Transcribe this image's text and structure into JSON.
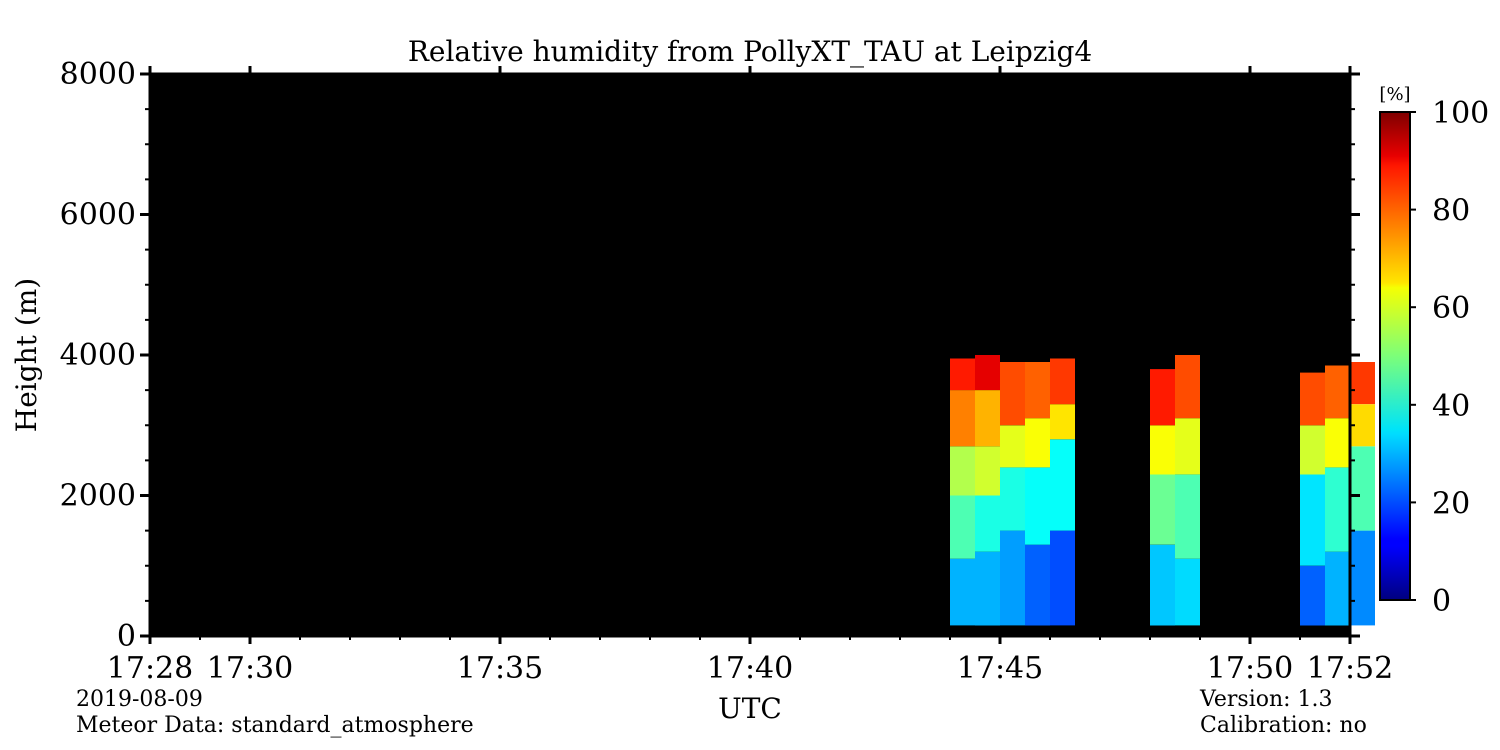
{
  "chart_data": {
    "type": "heatmap",
    "title": "Relative humidity from PollyXT_TAU at Leipzig4",
    "xlabel": "UTC",
    "ylabel": "Height (m)",
    "x_range": [
      "17:28",
      "17:52"
    ],
    "x_ticks": [
      "17:28",
      "17:30",
      "17:35",
      "17:40",
      "17:45",
      "17:50",
      "17:52"
    ],
    "ylim": [
      0,
      8000
    ],
    "y_ticks": [
      0,
      2000,
      4000,
      6000,
      8000
    ],
    "colorbar": {
      "label": "[%]",
      "range": [
        0,
        100
      ],
      "ticks": [
        0,
        20,
        40,
        60,
        80,
        100
      ],
      "colormap": "jet"
    },
    "background_color": "#000000",
    "profiles": [
      {
        "time": "17:44",
        "segments": [
          {
            "from": 150,
            "to": 1100,
            "rh": 30
          },
          {
            "from": 1100,
            "to": 2000,
            "rh": 45
          },
          {
            "from": 2000,
            "to": 2700,
            "rh": 55
          },
          {
            "from": 2700,
            "to": 3500,
            "rh": 75
          },
          {
            "from": 3500,
            "to": 3950,
            "rh": 85
          }
        ]
      },
      {
        "time": "17:44.5",
        "segments": [
          {
            "from": 150,
            "to": 1200,
            "rh": 30
          },
          {
            "from": 1200,
            "to": 2000,
            "rh": 40
          },
          {
            "from": 2000,
            "to": 2700,
            "rh": 58
          },
          {
            "from": 2700,
            "to": 3500,
            "rh": 70
          },
          {
            "from": 3500,
            "to": 4000,
            "rh": 90
          }
        ]
      },
      {
        "time": "17:45",
        "segments": [
          {
            "from": 150,
            "to": 1500,
            "rh": 28
          },
          {
            "from": 1500,
            "to": 2400,
            "rh": 40
          },
          {
            "from": 2400,
            "to": 3000,
            "rh": 60
          },
          {
            "from": 3000,
            "to": 3900,
            "rh": 80
          }
        ]
      },
      {
        "time": "17:45.5",
        "segments": [
          {
            "from": 150,
            "to": 1300,
            "rh": 22
          },
          {
            "from": 1300,
            "to": 2400,
            "rh": 38
          },
          {
            "from": 2400,
            "to": 3100,
            "rh": 62
          },
          {
            "from": 3100,
            "to": 3900,
            "rh": 78
          }
        ]
      },
      {
        "time": "17:46",
        "segments": [
          {
            "from": 150,
            "to": 1500,
            "rh": 20
          },
          {
            "from": 1500,
            "to": 2800,
            "rh": 38
          },
          {
            "from": 2800,
            "to": 3300,
            "rh": 65
          },
          {
            "from": 3300,
            "to": 3950,
            "rh": 82
          }
        ]
      },
      {
        "time": "17:48",
        "segments": [
          {
            "from": 150,
            "to": 1300,
            "rh": 32
          },
          {
            "from": 1300,
            "to": 2300,
            "rh": 48
          },
          {
            "from": 2300,
            "to": 3000,
            "rh": 62
          },
          {
            "from": 3000,
            "to": 3800,
            "rh": 85
          }
        ]
      },
      {
        "time": "17:48.5",
        "segments": [
          {
            "from": 150,
            "to": 1100,
            "rh": 34
          },
          {
            "from": 1100,
            "to": 2300,
            "rh": 45
          },
          {
            "from": 2300,
            "to": 3100,
            "rh": 60
          },
          {
            "from": 3100,
            "to": 4000,
            "rh": 80
          }
        ]
      },
      {
        "time": "17:51",
        "segments": [
          {
            "from": 150,
            "to": 1000,
            "rh": 22
          },
          {
            "from": 1000,
            "to": 2300,
            "rh": 35
          },
          {
            "from": 2300,
            "to": 3000,
            "rh": 58
          },
          {
            "from": 3000,
            "to": 3750,
            "rh": 80
          }
        ]
      },
      {
        "time": "17:51.5",
        "segments": [
          {
            "from": 150,
            "to": 1200,
            "rh": 30
          },
          {
            "from": 1200,
            "to": 2400,
            "rh": 42
          },
          {
            "from": 2400,
            "to": 3100,
            "rh": 62
          },
          {
            "from": 3100,
            "to": 3850,
            "rh": 78
          }
        ]
      },
      {
        "time": "17:52",
        "segments": [
          {
            "from": 150,
            "to": 1500,
            "rh": 26
          },
          {
            "from": 1500,
            "to": 2700,
            "rh": 45
          },
          {
            "from": 2700,
            "to": 3300,
            "rh": 66
          },
          {
            "from": 3300,
            "to": 3900,
            "rh": 82
          }
        ]
      }
    ]
  },
  "footer": {
    "date": "2019-08-09",
    "meteor": "Meteor Data: standard_atmosphere",
    "version": "Version: 1.3",
    "calibration": "Calibration: no"
  }
}
